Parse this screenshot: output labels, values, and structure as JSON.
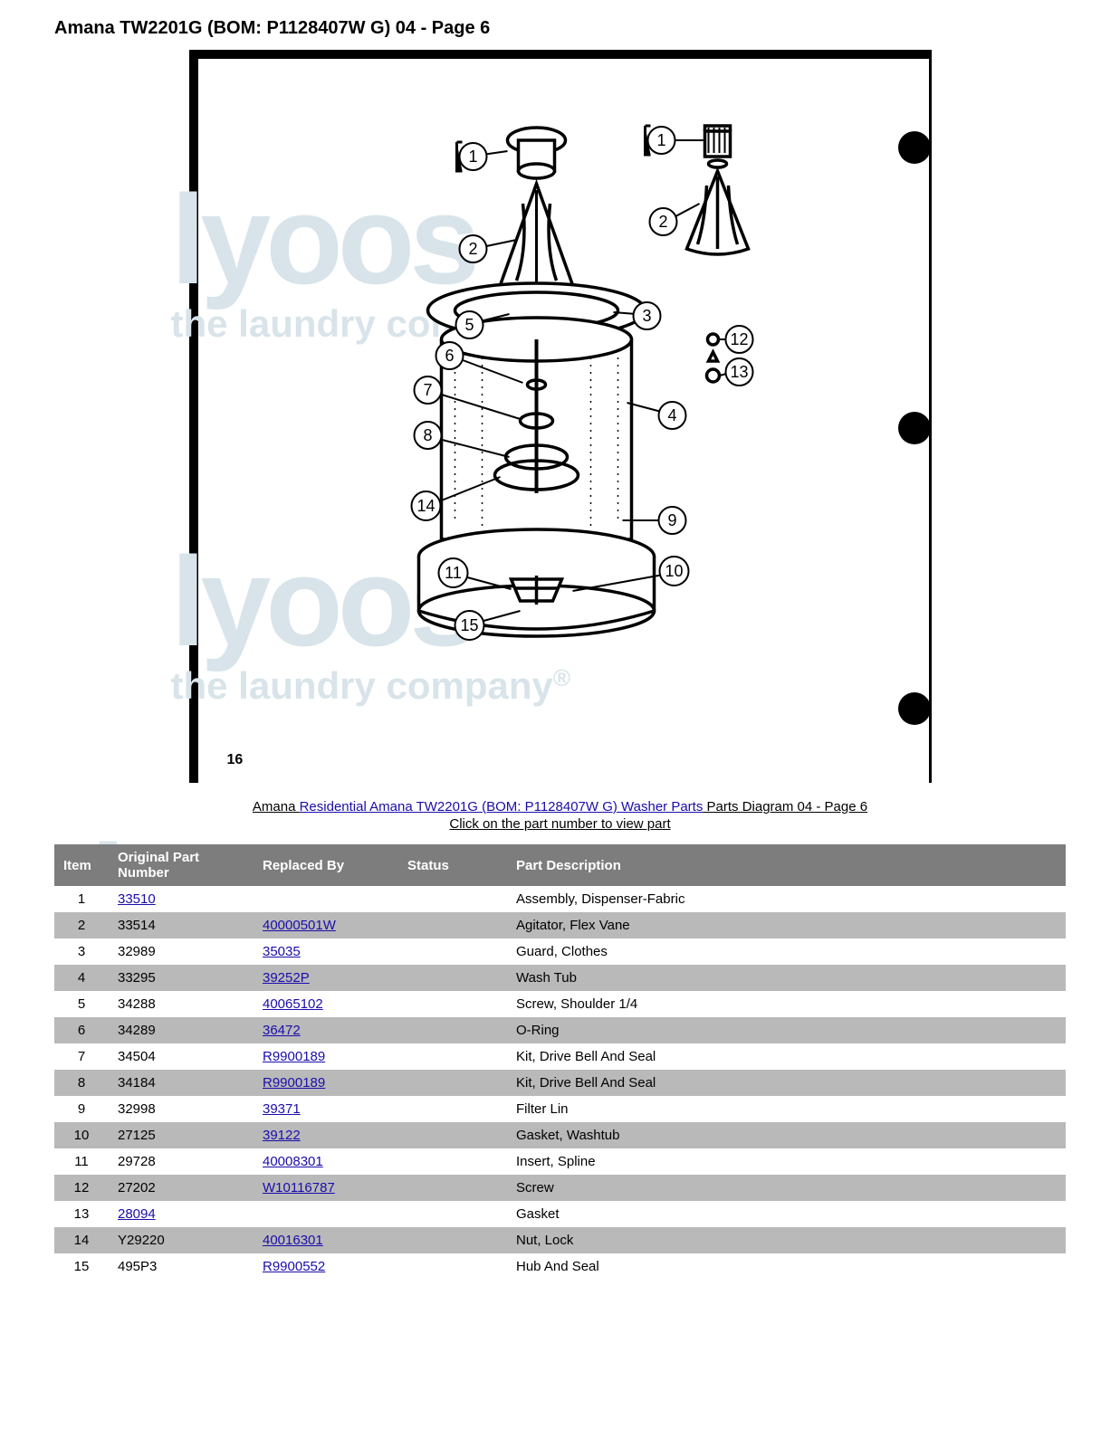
{
  "title": "Amana TW2201G (BOM: P1128407W G) 04 - Page 6",
  "breadcrumb": {
    "prefix": "Amana ",
    "link_text": "Residential Amana TW2201G (BOM: P1128407W G) Washer Parts",
    "suffix": " Parts Diagram 04 - Page 6"
  },
  "instruction": "Click on the part number to view part",
  "diagram": {
    "page_number": "16",
    "callouts": [
      "1",
      "1",
      "2",
      "2",
      "3",
      "4",
      "5",
      "6",
      "7",
      "8",
      "9",
      "10",
      "11",
      "12",
      "13",
      "14",
      "15"
    ]
  },
  "watermark": {
    "brand": "lyoos",
    "tagline": "the laundry company",
    "reg": "®"
  },
  "columns": [
    "Item",
    "Original Part Number",
    "Replaced By",
    "Status",
    "Part Description"
  ],
  "rows": [
    {
      "item": "1",
      "orig": "33510",
      "orig_link": true,
      "repl": "",
      "repl_link": false,
      "status": "",
      "desc": "Assembly, Dispenser-Fabric"
    },
    {
      "item": "2",
      "orig": "33514",
      "orig_link": false,
      "repl": "40000501W",
      "repl_link": true,
      "status": "",
      "desc": "Agitator, Flex Vane"
    },
    {
      "item": "3",
      "orig": "32989",
      "orig_link": false,
      "repl": "35035",
      "repl_link": true,
      "status": "",
      "desc": "Guard, Clothes"
    },
    {
      "item": "4",
      "orig": "33295",
      "orig_link": false,
      "repl": "39252P",
      "repl_link": true,
      "status": "",
      "desc": "Wash Tub"
    },
    {
      "item": "5",
      "orig": "34288",
      "orig_link": false,
      "repl": "40065102",
      "repl_link": true,
      "status": "",
      "desc": "Screw, Shoulder 1/4"
    },
    {
      "item": "6",
      "orig": "34289",
      "orig_link": false,
      "repl": "36472",
      "repl_link": true,
      "status": "",
      "desc": "O-Ring"
    },
    {
      "item": "7",
      "orig": "34504",
      "orig_link": false,
      "repl": "R9900189",
      "repl_link": true,
      "status": "",
      "desc": "Kit, Drive Bell And Seal"
    },
    {
      "item": "8",
      "orig": "34184",
      "orig_link": false,
      "repl": "R9900189",
      "repl_link": true,
      "status": "",
      "desc": "Kit, Drive Bell And Seal"
    },
    {
      "item": "9",
      "orig": "32998",
      "orig_link": false,
      "repl": "39371",
      "repl_link": true,
      "status": "",
      "desc": "Filter Lin"
    },
    {
      "item": "10",
      "orig": "27125",
      "orig_link": false,
      "repl": "39122",
      "repl_link": true,
      "status": "",
      "desc": "Gasket, Washtub"
    },
    {
      "item": "11",
      "orig": "29728",
      "orig_link": false,
      "repl": "40008301",
      "repl_link": true,
      "status": "",
      "desc": "Insert, Spline"
    },
    {
      "item": "12",
      "orig": "27202",
      "orig_link": false,
      "repl": "W10116787",
      "repl_link": true,
      "status": "",
      "desc": "Screw"
    },
    {
      "item": "13",
      "orig": "28094",
      "orig_link": true,
      "repl": "",
      "repl_link": false,
      "status": "",
      "desc": "Gasket"
    },
    {
      "item": "14",
      "orig": "Y29220",
      "orig_link": false,
      "repl": "40016301",
      "repl_link": true,
      "status": "",
      "desc": "Nut, Lock"
    },
    {
      "item": "15",
      "orig": "495P3",
      "orig_link": false,
      "repl": "R9900552",
      "repl_link": true,
      "status": "",
      "desc": "Hub And Seal"
    }
  ],
  "colors": {
    "header_bg": "#7d7d7d",
    "header_fg": "#ffffff",
    "row_alt_bg": "#b9b9b9",
    "link": "#1a0dab",
    "watermark": "#d8e4ea"
  }
}
